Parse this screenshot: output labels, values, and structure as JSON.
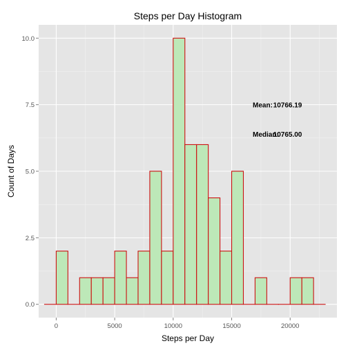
{
  "chart_data": {
    "type": "bar",
    "title": "Steps per Day Histogram",
    "xlabel": "Steps per Day",
    "ylabel": "Count of Days",
    "xlim": [
      -1500,
      24000
    ],
    "ylim": [
      -0.5,
      10.5
    ],
    "x_ticks": [
      0,
      5000,
      10000,
      15000,
      20000
    ],
    "x_tick_labels": [
      "0",
      "5000",
      "10000",
      "15000",
      "20000"
    ],
    "y_ticks": [
      0,
      2.5,
      5,
      7.5,
      10
    ],
    "y_tick_labels": [
      "0.0",
      "2.5",
      "5.0",
      "7.5",
      "10.0"
    ],
    "bin_width": 1000,
    "bin_starts": [
      -1000,
      0,
      1000,
      2000,
      3000,
      4000,
      5000,
      6000,
      7000,
      8000,
      9000,
      10000,
      11000,
      12000,
      13000,
      14000,
      15000,
      16000,
      17000,
      18000,
      19000,
      20000,
      21000,
      22000
    ],
    "counts": [
      0,
      2,
      0,
      1,
      1,
      1,
      2,
      1,
      2,
      5,
      2,
      10,
      6,
      6,
      4,
      2,
      5,
      0,
      1,
      0,
      0,
      1,
      1,
      0
    ],
    "grid": true,
    "legend": "none",
    "colors": {
      "panel": "#e5e5e5",
      "grid_major": "#ffffff",
      "grid_minor": "#f2f2f2",
      "bar_fill": "#bde8b8",
      "bar_edge": "#cc1111"
    },
    "annotations": [
      {
        "label": "Mean:",
        "value": "10766.19"
      },
      {
        "label": "Median:",
        "value": "10765.00"
      }
    ]
  }
}
